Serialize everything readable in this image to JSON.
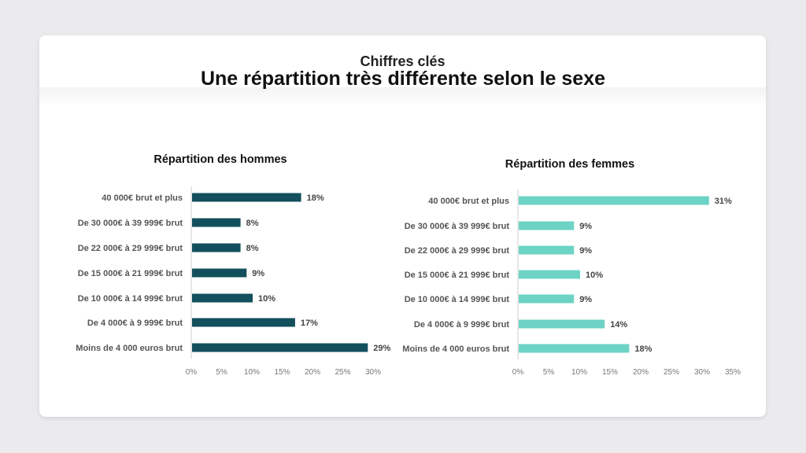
{
  "header": {
    "title": "Chiffres clés"
  },
  "slide": {
    "title": "Une répartition très différente selon le sexe"
  },
  "colors": {
    "men": "#134f5c",
    "women": "#6dd3c4"
  },
  "chart_data": [
    {
      "type": "bar",
      "orientation": "horizontal",
      "title": "Répartition des hommes",
      "categories": [
        "40 000€ brut et plus",
        "De 30 000€ à 39 999€ brut",
        "De 22 000€ à 29 999€ brut",
        "De 15 000€ à 21 999€ brut",
        "De 10 000€ à 14 999€ brut",
        "De 4 000€ à 9 999€ brut",
        "Moins de 4 000 euros brut"
      ],
      "values": [
        18,
        8,
        8,
        9,
        10,
        17,
        29
      ],
      "value_labels": [
        "18%",
        "8%",
        "8%",
        "9%",
        "10%",
        "17%",
        "29%"
      ],
      "xlim": [
        0,
        30
      ],
      "ticks": [
        "0%",
        "5%",
        "10%",
        "15%",
        "20%",
        "25%",
        "30%"
      ],
      "grid": false
    },
    {
      "type": "bar",
      "orientation": "horizontal",
      "title": "Répartition des femmes",
      "categories": [
        "40 000€ brut et plus",
        "De 30 000€ à 39 999€ brut",
        "De 22 000€ à 29 999€ brut",
        "De 15 000€ à 21 999€ brut",
        "De 10 000€ à 14 999€ brut",
        "De 4 000€ à 9 999€ brut",
        "Moins de 4 000 euros brut"
      ],
      "values": [
        31,
        9,
        9,
        10,
        9,
        14,
        18
      ],
      "value_labels": [
        "31%",
        "9%",
        "9%",
        "10%",
        "9%",
        "14%",
        "18%"
      ],
      "xlim": [
        0,
        35
      ],
      "ticks": [
        "0%",
        "5%",
        "10%",
        "15%",
        "20%",
        "25%",
        "30%",
        "35%"
      ],
      "grid": false
    }
  ]
}
